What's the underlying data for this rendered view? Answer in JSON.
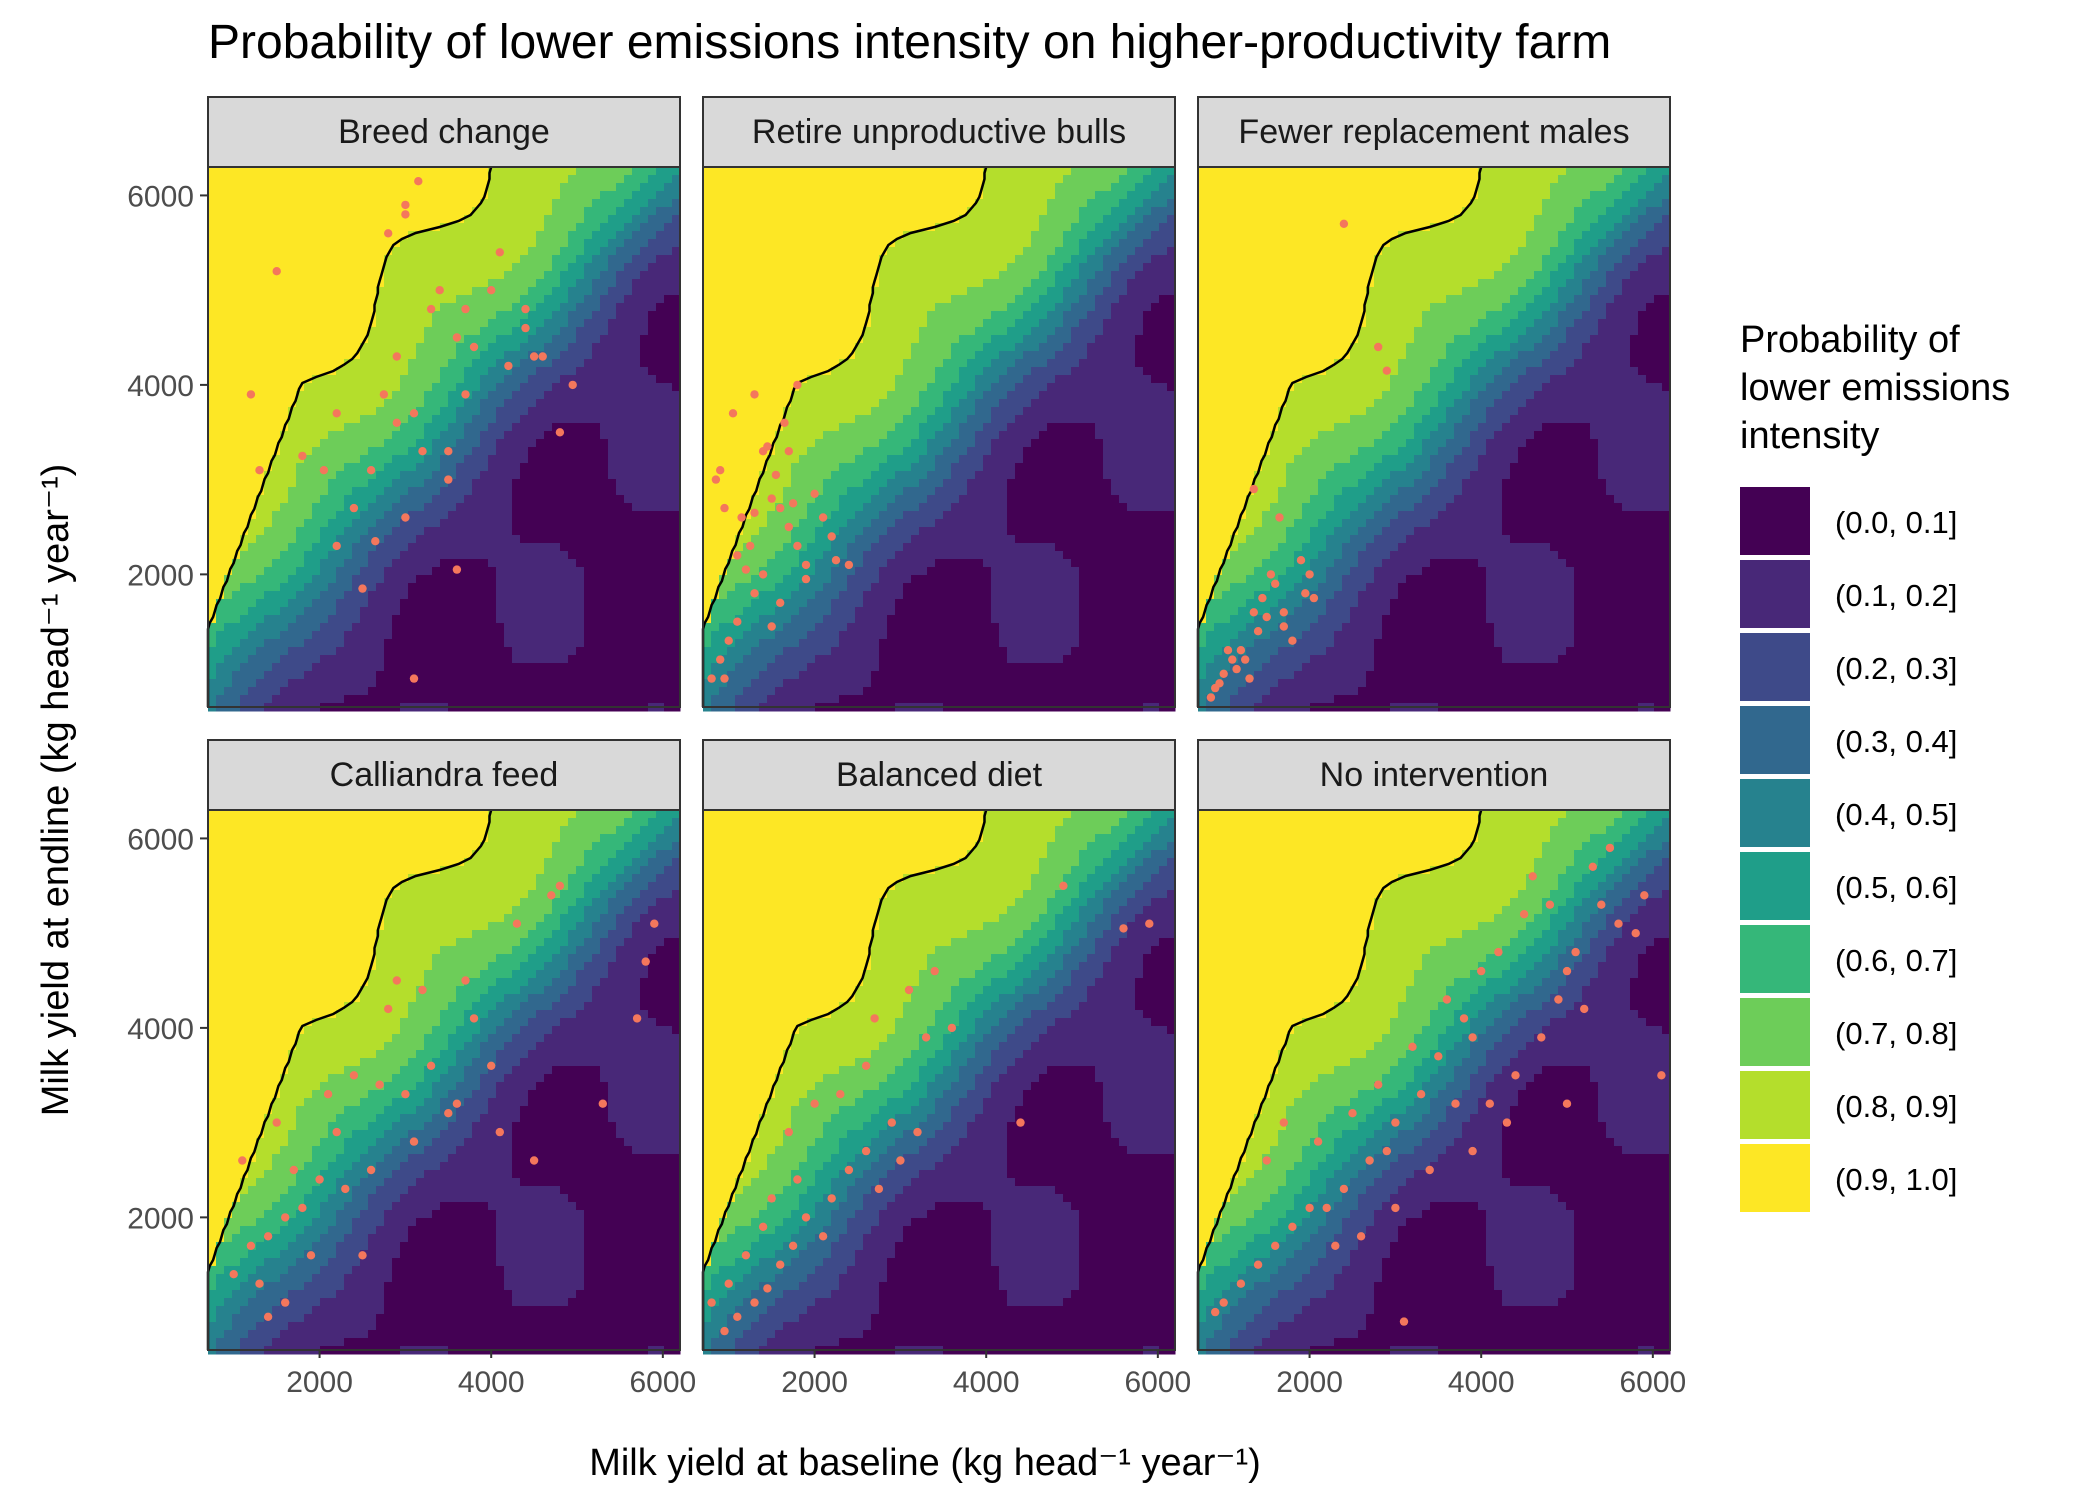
{
  "chart_data": {
    "type": "contour-scatter-facets",
    "title": "Probability of lower emissions intensity on higher-productivity farm",
    "xlabel": "Milk yield at baseline (kg head⁻¹ year⁻¹)",
    "ylabel": "Milk yield at endline (kg head⁻¹ year⁻¹)",
    "xlim": [
      700,
      6200
    ],
    "ylim": [
      600,
      6300
    ],
    "x_ticks": [
      2000,
      4000,
      6000
    ],
    "y_ticks": [
      2000,
      4000,
      6000
    ],
    "point_color": "#f4775c",
    "legend": {
      "title": "Probability of lower emissions intensity",
      "position": "right",
      "bins": [
        {
          "label": "(0.0, 0.1]",
          "color": "#440154"
        },
        {
          "label": "(0.1, 0.2]",
          "color": "#482878"
        },
        {
          "label": "(0.2, 0.3]",
          "color": "#3e4a89"
        },
        {
          "label": "(0.3, 0.4]",
          "color": "#31688e"
        },
        {
          "label": "(0.4, 0.5]",
          "color": "#26828e"
        },
        {
          "label": "(0.5, 0.6]",
          "color": "#1f9e89"
        },
        {
          "label": "(0.6, 0.7]",
          "color": "#35b779"
        },
        {
          "label": "(0.7, 0.8]",
          "color": "#6dcd59"
        },
        {
          "label": "(0.8, 0.9]",
          "color": "#b4de2c"
        },
        {
          "label": "(0.9, 1.0]",
          "color": "#fde725"
        }
      ]
    },
    "facets": [
      {
        "title": "Breed change",
        "points": [
          [
            1500,
            5200
          ],
          [
            1200,
            3900
          ],
          [
            3100,
            900
          ],
          [
            2500,
            1850
          ],
          [
            2650,
            2350
          ],
          [
            3600,
            2050
          ],
          [
            3500,
            3000
          ],
          [
            3150,
            6150
          ],
          [
            3000,
            5900
          ],
          [
            3000,
            5800
          ],
          [
            2800,
            5600
          ],
          [
            4000,
            5000
          ],
          [
            4400,
            4600
          ],
          [
            4500,
            4300
          ],
          [
            4600,
            4300
          ],
          [
            4950,
            4000
          ],
          [
            4800,
            3500
          ],
          [
            3700,
            4800
          ],
          [
            4200,
            4200
          ],
          [
            3200,
            3300
          ],
          [
            2750,
            3900
          ],
          [
            2200,
            3700
          ],
          [
            3300,
            4800
          ],
          [
            3600,
            4500
          ],
          [
            3700,
            3900
          ],
          [
            3100,
            3700
          ],
          [
            2900,
            3600
          ],
          [
            2600,
            3100
          ],
          [
            3000,
            2600
          ],
          [
            2200,
            2300
          ],
          [
            3800,
            4400
          ],
          [
            4400,
            4800
          ],
          [
            4100,
            5400
          ],
          [
            3400,
            5000
          ],
          [
            2900,
            4300
          ],
          [
            3500,
            3300
          ],
          [
            2050,
            3100
          ],
          [
            1800,
            3250
          ],
          [
            1300,
            3100
          ],
          [
            2400,
            2700
          ]
        ]
      },
      {
        "title": "Retire unproductive bulls",
        "points": [
          [
            1300,
            3900
          ],
          [
            1050,
            3700
          ],
          [
            900,
            3100
          ],
          [
            850,
            3000
          ],
          [
            950,
            2700
          ],
          [
            1150,
            2600
          ],
          [
            1400,
            3300
          ],
          [
            1500,
            2800
          ],
          [
            1600,
            2700
          ],
          [
            1700,
            2500
          ],
          [
            1800,
            2300
          ],
          [
            1900,
            2100
          ],
          [
            2100,
            2600
          ],
          [
            2200,
            2400
          ],
          [
            2400,
            2100
          ],
          [
            1650,
            3600
          ],
          [
            1800,
            4000
          ],
          [
            1700,
            3300
          ],
          [
            1400,
            2000
          ],
          [
            1300,
            1800
          ],
          [
            1100,
            1500
          ],
          [
            900,
            1100
          ],
          [
            800,
            900
          ],
          [
            1000,
            1300
          ],
          [
            1250,
            2300
          ],
          [
            1550,
            3050
          ],
          [
            1450,
            3350
          ],
          [
            1750,
            2750
          ],
          [
            2000,
            2850
          ],
          [
            1900,
            1950
          ],
          [
            1300,
            2650
          ],
          [
            1200,
            2050
          ],
          [
            1600,
            1700
          ],
          [
            950,
            900
          ],
          [
            1100,
            2200
          ],
          [
            1500,
            1450
          ],
          [
            2250,
            2150
          ]
        ]
      },
      {
        "title": "Fewer replacement males",
        "points": [
          [
            2400,
            5700
          ],
          [
            2800,
            4400
          ],
          [
            2900,
            4150
          ],
          [
            1350,
            2900
          ],
          [
            1650,
            2600
          ],
          [
            1550,
            2000
          ],
          [
            1600,
            1900
          ],
          [
            1950,
            1800
          ],
          [
            2050,
            1750
          ],
          [
            2000,
            2000
          ],
          [
            1900,
            2150
          ],
          [
            1500,
            1550
          ],
          [
            1400,
            1400
          ],
          [
            1200,
            1200
          ],
          [
            1100,
            1100
          ],
          [
            950,
            850
          ],
          [
            900,
            800
          ],
          [
            1250,
            1100
          ],
          [
            1350,
            1600
          ],
          [
            1700,
            1600
          ],
          [
            1800,
            1300
          ],
          [
            1000,
            950
          ],
          [
            1450,
            1750
          ],
          [
            1150,
            1000
          ],
          [
            850,
            700
          ],
          [
            1050,
            1200
          ],
          [
            1300,
            900
          ],
          [
            1700,
            1450
          ]
        ]
      },
      {
        "title": "Calliandra feed",
        "points": [
          [
            5900,
            5100
          ],
          [
            5800,
            4700
          ],
          [
            5700,
            4100
          ],
          [
            5300,
            3200
          ],
          [
            4800,
            5500
          ],
          [
            4700,
            5400
          ],
          [
            4300,
            5100
          ],
          [
            3700,
            4500
          ],
          [
            3800,
            4100
          ],
          [
            3200,
            4400
          ],
          [
            2900,
            4500
          ],
          [
            2800,
            4200
          ],
          [
            3000,
            3300
          ],
          [
            3500,
            3100
          ],
          [
            4000,
            3600
          ],
          [
            4500,
            2600
          ],
          [
            3100,
            2800
          ],
          [
            2600,
            2500
          ],
          [
            2300,
            2300
          ],
          [
            2000,
            2400
          ],
          [
            1800,
            2100
          ],
          [
            1600,
            2000
          ],
          [
            1400,
            1800
          ],
          [
            1200,
            1700
          ],
          [
            1000,
            1400
          ],
          [
            1100,
            2600
          ],
          [
            1500,
            3000
          ],
          [
            2100,
            3300
          ],
          [
            2400,
            3500
          ],
          [
            2700,
            3400
          ],
          [
            1900,
            1600
          ],
          [
            1600,
            1100
          ],
          [
            1400,
            950
          ],
          [
            1300,
            1300
          ],
          [
            1700,
            2500
          ],
          [
            2200,
            2900
          ],
          [
            3300,
            3600
          ],
          [
            3600,
            3200
          ],
          [
            4100,
            2900
          ],
          [
            2500,
            1600
          ]
        ]
      },
      {
        "title": "Balanced diet",
        "points": [
          [
            5900,
            5100
          ],
          [
            5600,
            5050
          ],
          [
            4900,
            5500
          ],
          [
            4400,
            3000
          ],
          [
            3600,
            4000
          ],
          [
            3300,
            3900
          ],
          [
            3400,
            4600
          ],
          [
            3100,
            4400
          ],
          [
            2700,
            4100
          ],
          [
            2600,
            3600
          ],
          [
            2300,
            3300
          ],
          [
            2000,
            3200
          ],
          [
            1700,
            2900
          ],
          [
            1800,
            2400
          ],
          [
            1500,
            2200
          ],
          [
            1400,
            1900
          ],
          [
            1200,
            1600
          ],
          [
            1000,
            1300
          ],
          [
            800,
            1100
          ],
          [
            2600,
            2700
          ],
          [
            2900,
            3000
          ],
          [
            3000,
            2600
          ],
          [
            1900,
            2000
          ],
          [
            2200,
            2200
          ],
          [
            2400,
            2500
          ],
          [
            3200,
            2900
          ],
          [
            1600,
            1500
          ],
          [
            1300,
            1100
          ],
          [
            1100,
            950
          ],
          [
            2100,
            1800
          ],
          [
            1750,
            1700
          ],
          [
            2750,
            2300
          ],
          [
            1450,
            1250
          ],
          [
            950,
            800
          ]
        ]
      },
      {
        "title": "No intervention",
        "points": [
          [
            3100,
            900
          ],
          [
            5500,
            5900
          ],
          [
            5300,
            5700
          ],
          [
            5900,
            5400
          ],
          [
            5600,
            5100
          ],
          [
            5800,
            5000
          ],
          [
            5100,
            4800
          ],
          [
            5000,
            4600
          ],
          [
            4500,
            5200
          ],
          [
            4800,
            5300
          ],
          [
            4200,
            4800
          ],
          [
            4000,
            4600
          ],
          [
            3800,
            4100
          ],
          [
            3500,
            3700
          ],
          [
            5200,
            4200
          ],
          [
            4700,
            3900
          ],
          [
            4400,
            3500
          ],
          [
            4100,
            3200
          ],
          [
            3700,
            3200
          ],
          [
            3300,
            3300
          ],
          [
            3000,
            3000
          ],
          [
            2900,
            2700
          ],
          [
            2700,
            2600
          ],
          [
            2400,
            2300
          ],
          [
            2200,
            2100
          ],
          [
            2000,
            2100
          ],
          [
            1800,
            1900
          ],
          [
            1600,
            1700
          ],
          [
            1400,
            1500
          ],
          [
            1200,
            1300
          ],
          [
            1000,
            1100
          ],
          [
            900,
            1000
          ],
          [
            1500,
            2600
          ],
          [
            1700,
            3000
          ],
          [
            2100,
            2800
          ],
          [
            2500,
            3100
          ],
          [
            2800,
            3400
          ],
          [
            3200,
            3800
          ],
          [
            3600,
            4300
          ],
          [
            3900,
            3900
          ],
          [
            2300,
            1700
          ],
          [
            2600,
            1800
          ],
          [
            3000,
            2100
          ],
          [
            3400,
            2500
          ],
          [
            3900,
            2700
          ],
          [
            4300,
            3000
          ],
          [
            5000,
            3200
          ],
          [
            6100,
            3500
          ],
          [
            4600,
            5600
          ],
          [
            4900,
            4300
          ],
          [
            5400,
            5300
          ]
        ]
      }
    ]
  }
}
